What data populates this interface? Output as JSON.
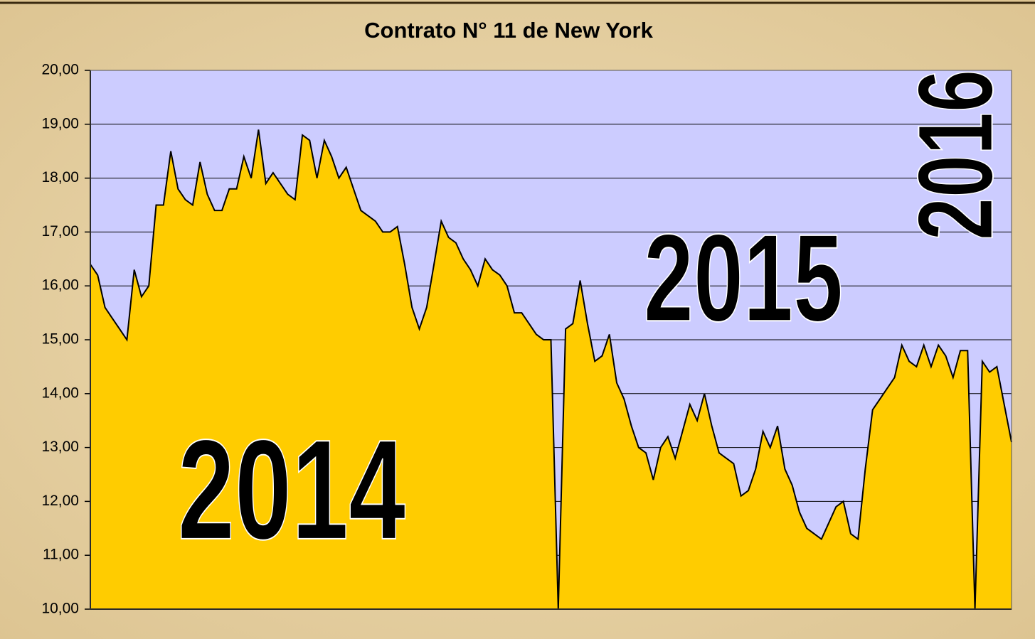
{
  "chart_data": {
    "type": "area",
    "title": "Contrato N° 11 de New York",
    "annotations": [
      "2014",
      "2015",
      "2016"
    ],
    "values": [
      16.4,
      16.2,
      15.6,
      15.4,
      15.2,
      15.0,
      16.3,
      15.8,
      16.0,
      17.5,
      17.5,
      18.5,
      17.8,
      17.6,
      17.5,
      18.3,
      17.7,
      17.4,
      17.4,
      17.8,
      17.8,
      18.4,
      18.0,
      18.9,
      17.9,
      18.1,
      17.9,
      17.7,
      17.6,
      18.8,
      18.7,
      18.0,
      18.7,
      18.4,
      18.0,
      18.2,
      17.8,
      17.4,
      17.3,
      17.2,
      17.0,
      17.0,
      17.1,
      16.4,
      15.6,
      15.2,
      15.6,
      16.4,
      17.2,
      16.9,
      16.8,
      16.5,
      16.3,
      16.0,
      16.5,
      16.3,
      16.2,
      16.0,
      15.5,
      15.5,
      15.3,
      15.1,
      15.0,
      15.0,
      10.0,
      15.2,
      15.3,
      16.1,
      15.3,
      14.6,
      14.7,
      15.1,
      14.2,
      13.9,
      13.4,
      13.0,
      12.9,
      12.4,
      13.0,
      13.2,
      12.8,
      13.3,
      13.8,
      13.5,
      14.0,
      13.4,
      12.9,
      12.8,
      12.7,
      12.1,
      12.2,
      12.6,
      13.3,
      13.0,
      13.4,
      12.6,
      12.3,
      11.8,
      11.5,
      11.4,
      11.3,
      11.6,
      11.9,
      12.0,
      11.4,
      11.3,
      12.6,
      13.7,
      13.9,
      14.1,
      14.3,
      14.9,
      14.6,
      14.5,
      14.9,
      14.5,
      14.9,
      14.7,
      14.3,
      14.8,
      14.8,
      10.0,
      14.6,
      14.4,
      14.5,
      13.8,
      13.1
    ],
    "color": "#ffcc00",
    "plot_background": "#ccccff",
    "ylim": [
      10,
      20
    ],
    "yticks": [
      {
        "value": 10,
        "label": "10,00"
      },
      {
        "value": 11,
        "label": "11,00"
      },
      {
        "value": 12,
        "label": "12,00"
      },
      {
        "value": 13,
        "label": "13,00"
      },
      {
        "value": 14,
        "label": "14,00"
      },
      {
        "value": 15,
        "label": "15,00"
      },
      {
        "value": 16,
        "label": "16,00"
      },
      {
        "value": 17,
        "label": "17,00"
      },
      {
        "value": 18,
        "label": "18,00"
      },
      {
        "value": 19,
        "label": "19,00"
      },
      {
        "value": 20,
        "label": "20,00"
      }
    ],
    "grid": true
  }
}
